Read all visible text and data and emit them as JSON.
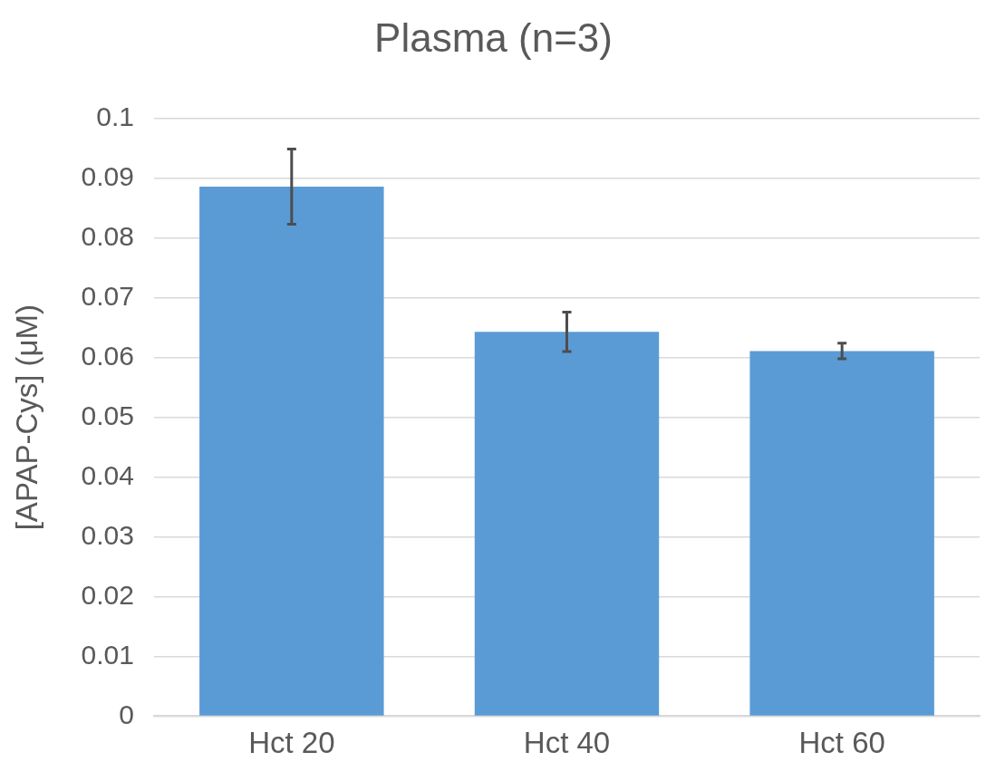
{
  "chart_data": {
    "type": "bar",
    "title": "Plasma (n=3)",
    "ylabel": "[APAP-Cys] (μM)",
    "categories": [
      "Hct 20",
      "Hct 40",
      "Hct 60"
    ],
    "values": [
      0.0886,
      0.0643,
      0.0611
    ],
    "errors": [
      0.0063,
      0.0033,
      0.0013
    ],
    "color": "#5b9bd5",
    "ylim": [
      0,
      0.1
    ],
    "yticks": [
      0,
      0.01,
      0.02,
      0.03,
      0.04,
      0.05,
      0.06,
      0.07,
      0.08,
      0.09,
      0.1
    ],
    "grid": "y",
    "legend": false
  }
}
